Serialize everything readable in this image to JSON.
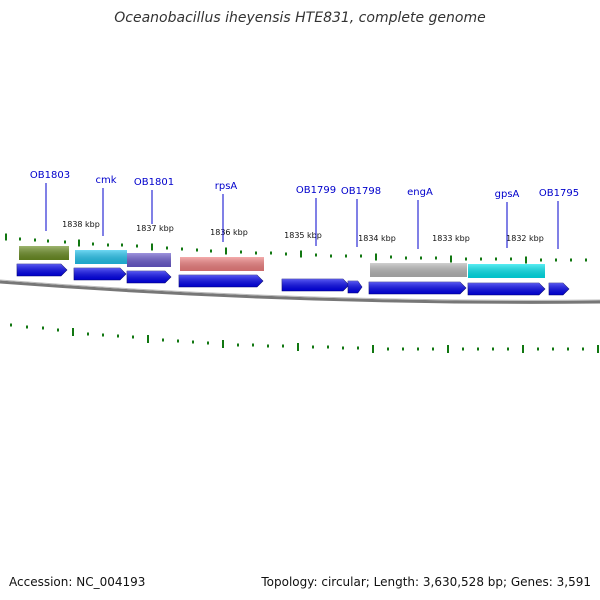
{
  "title": "Oceanobacillus iheyensis HTE831, complete genome",
  "footer": {
    "accession": "Accession: NC_004193",
    "summary": "Topology: circular; Length: 3,630,528 bp; Genes: 3,591"
  },
  "colors": {
    "cds_forward": "#0000ee",
    "tick": "#117711",
    "backbone": "#777777",
    "label": "#0000cc"
  },
  "scale_labels": [
    "1838 kbp",
    "1837 kbp",
    "1836 kbp",
    "1835 kbp",
    "1834 kbp",
    "1833 kbp",
    "1832 kbp"
  ],
  "genes": [
    {
      "name": "OB1803",
      "color": "#6b8e23"
    },
    {
      "name": "cmk",
      "color": "#22c4ee"
    },
    {
      "name": "OB1801",
      "color": "#6a5acd"
    },
    {
      "name": "rpsA",
      "color": "#f08080"
    },
    {
      "name": "OB1799",
      "color": ""
    },
    {
      "name": "OB1798",
      "color": ""
    },
    {
      "name": "engA",
      "color": "#b8b8b8"
    },
    {
      "name": "gpsA",
      "color": "#00e5ee"
    },
    {
      "name": "OB1795",
      "color": ""
    }
  ]
}
